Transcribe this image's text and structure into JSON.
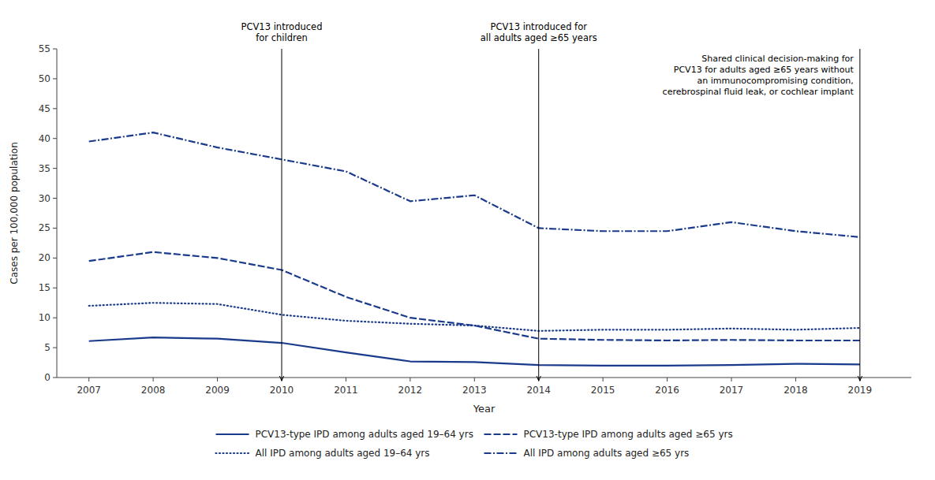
{
  "chart_data": {
    "type": "line",
    "xlabel": "Year",
    "ylabel": "Cases per 100,000 population",
    "x": [
      2007,
      2008,
      2009,
      2010,
      2011,
      2012,
      2013,
      2014,
      2015,
      2016,
      2017,
      2018,
      2019
    ],
    "series": [
      {
        "name": "PCV13-type IPD among adults aged 19–64 yrs",
        "color": "#1a3a8c",
        "line_style": "solid",
        "values": [
          6.1,
          6.7,
          6.5,
          5.8,
          4.2,
          2.7,
          2.6,
          2.1,
          2.0,
          2.0,
          2.1,
          2.3,
          2.2
        ]
      },
      {
        "name": "PCV13-type IPD among adults aged ≥65 yrs",
        "color": "#1a3a8c",
        "line_style": "dashed",
        "values": [
          19.5,
          21.0,
          20.0,
          18.0,
          13.5,
          10.0,
          8.7,
          6.5,
          6.3,
          6.2,
          6.3,
          6.2,
          6.2
        ]
      },
      {
        "name": "All IPD among adults aged 19–64 yrs",
        "color": "#1a3a8c",
        "line_style": "dotted",
        "values": [
          12.0,
          12.5,
          12.3,
          10.5,
          9.5,
          9.0,
          8.7,
          7.8,
          8.0,
          8.0,
          8.2,
          8.0,
          8.3
        ]
      },
      {
        "name": "All IPD among adults aged ≥65 yrs",
        "color": "#1a3a8c",
        "line_style": "dashdot",
        "values": [
          39.5,
          41.0,
          38.5,
          36.5,
          34.5,
          29.5,
          30.5,
          25.0,
          24.5,
          24.5,
          26.0,
          24.5,
          23.5
        ]
      }
    ],
    "vlines": [
      {
        "x": 2010,
        "label": "PCV13 introduced\nfor children"
      },
      {
        "x": 2014,
        "label": "PCV13 introduced for\nall adults aged ≥65 years"
      },
      {
        "x": 2019,
        "label": "Shared clinical decision-making for\nPCV13 for adults aged ≥65 years without\nan immunocompromising condition,\ncerebrospinal fluid leak, or cochlear implant"
      }
    ],
    "xlim": [
      2006.5,
      2019.8
    ],
    "xticks": [
      2007,
      2008,
      2009,
      2010,
      2011,
      2012,
      2013,
      2014,
      2015,
      2016,
      2017,
      2018,
      2019
    ],
    "ylim": [
      0,
      55
    ],
    "yticks": [
      0,
      5,
      10,
      15,
      20,
      25,
      30,
      35,
      40,
      45,
      50,
      55
    ],
    "grid": false,
    "legend": "bottom"
  }
}
